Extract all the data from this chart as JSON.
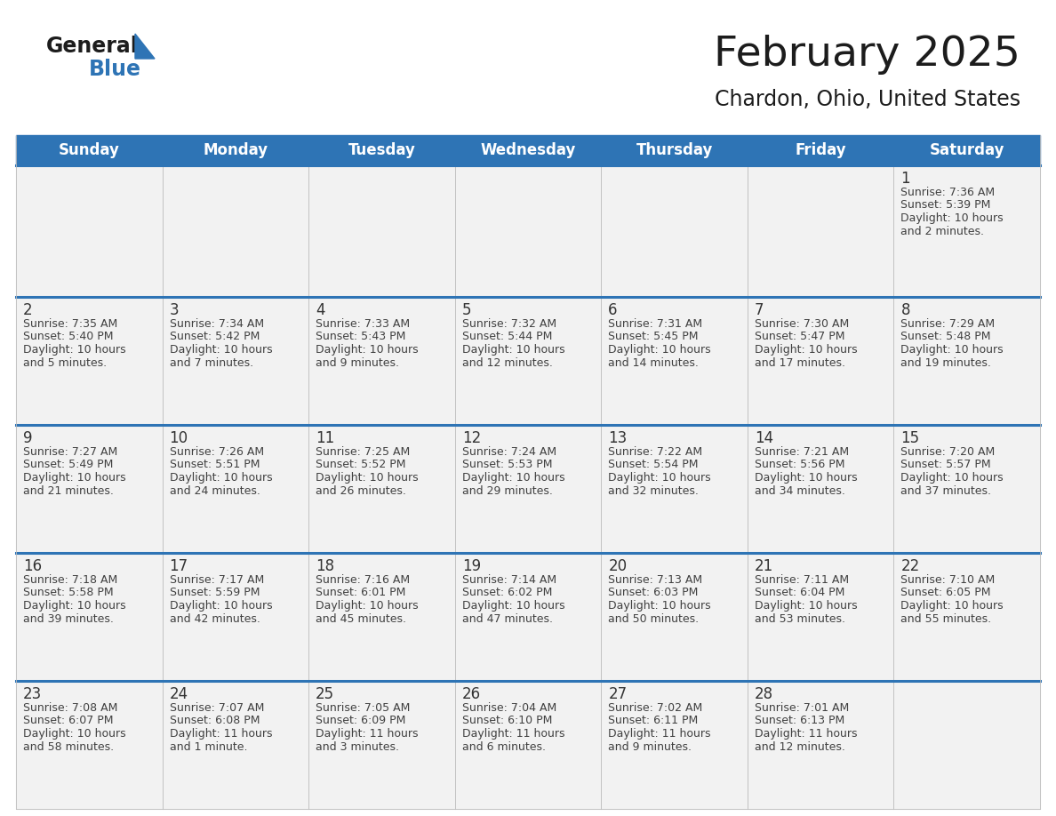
{
  "title": "February 2025",
  "subtitle": "Chardon, Ohio, United States",
  "days_of_week": [
    "Sunday",
    "Monday",
    "Tuesday",
    "Wednesday",
    "Thursday",
    "Friday",
    "Saturday"
  ],
  "header_bg": "#2E74B5",
  "header_text": "#FFFFFF",
  "cell_bg": "#F2F2F2",
  "divider_color": "#2E74B5",
  "text_color": "#404040",
  "day_num_color": "#333333",
  "border_color": "#BBBBBB",
  "calendar_data": {
    "1": {
      "sunrise": "7:36 AM",
      "sunset": "5:39 PM",
      "daylight": "10 hours and 2 minutes."
    },
    "2": {
      "sunrise": "7:35 AM",
      "sunset": "5:40 PM",
      "daylight": "10 hours and 5 minutes."
    },
    "3": {
      "sunrise": "7:34 AM",
      "sunset": "5:42 PM",
      "daylight": "10 hours and 7 minutes."
    },
    "4": {
      "sunrise": "7:33 AM",
      "sunset": "5:43 PM",
      "daylight": "10 hours and 9 minutes."
    },
    "5": {
      "sunrise": "7:32 AM",
      "sunset": "5:44 PM",
      "daylight": "10 hours and 12 minutes."
    },
    "6": {
      "sunrise": "7:31 AM",
      "sunset": "5:45 PM",
      "daylight": "10 hours and 14 minutes."
    },
    "7": {
      "sunrise": "7:30 AM",
      "sunset": "5:47 PM",
      "daylight": "10 hours and 17 minutes."
    },
    "8": {
      "sunrise": "7:29 AM",
      "sunset": "5:48 PM",
      "daylight": "10 hours and 19 minutes."
    },
    "9": {
      "sunrise": "7:27 AM",
      "sunset": "5:49 PM",
      "daylight": "10 hours and 21 minutes."
    },
    "10": {
      "sunrise": "7:26 AM",
      "sunset": "5:51 PM",
      "daylight": "10 hours and 24 minutes."
    },
    "11": {
      "sunrise": "7:25 AM",
      "sunset": "5:52 PM",
      "daylight": "10 hours and 26 minutes."
    },
    "12": {
      "sunrise": "7:24 AM",
      "sunset": "5:53 PM",
      "daylight": "10 hours and 29 minutes."
    },
    "13": {
      "sunrise": "7:22 AM",
      "sunset": "5:54 PM",
      "daylight": "10 hours and 32 minutes."
    },
    "14": {
      "sunrise": "7:21 AM",
      "sunset": "5:56 PM",
      "daylight": "10 hours and 34 minutes."
    },
    "15": {
      "sunrise": "7:20 AM",
      "sunset": "5:57 PM",
      "daylight": "10 hours and 37 minutes."
    },
    "16": {
      "sunrise": "7:18 AM",
      "sunset": "5:58 PM",
      "daylight": "10 hours and 39 minutes."
    },
    "17": {
      "sunrise": "7:17 AM",
      "sunset": "5:59 PM",
      "daylight": "10 hours and 42 minutes."
    },
    "18": {
      "sunrise": "7:16 AM",
      "sunset": "6:01 PM",
      "daylight": "10 hours and 45 minutes."
    },
    "19": {
      "sunrise": "7:14 AM",
      "sunset": "6:02 PM",
      "daylight": "10 hours and 47 minutes."
    },
    "20": {
      "sunrise": "7:13 AM",
      "sunset": "6:03 PM",
      "daylight": "10 hours and 50 minutes."
    },
    "21": {
      "sunrise": "7:11 AM",
      "sunset": "6:04 PM",
      "daylight": "10 hours and 53 minutes."
    },
    "22": {
      "sunrise": "7:10 AM",
      "sunset": "6:05 PM",
      "daylight": "10 hours and 55 minutes."
    },
    "23": {
      "sunrise": "7:08 AM",
      "sunset": "6:07 PM",
      "daylight": "10 hours and 58 minutes."
    },
    "24": {
      "sunrise": "7:07 AM",
      "sunset": "6:08 PM",
      "daylight": "11 hours and 1 minute."
    },
    "25": {
      "sunrise": "7:05 AM",
      "sunset": "6:09 PM",
      "daylight": "11 hours and 3 minutes."
    },
    "26": {
      "sunrise": "7:04 AM",
      "sunset": "6:10 PM",
      "daylight": "11 hours and 6 minutes."
    },
    "27": {
      "sunrise": "7:02 AM",
      "sunset": "6:11 PM",
      "daylight": "11 hours and 9 minutes."
    },
    "28": {
      "sunrise": "7:01 AM",
      "sunset": "6:13 PM",
      "daylight": "11 hours and 12 minutes."
    }
  },
  "week_layout": [
    [
      null,
      null,
      null,
      null,
      null,
      null,
      1
    ],
    [
      2,
      3,
      4,
      5,
      6,
      7,
      8
    ],
    [
      9,
      10,
      11,
      12,
      13,
      14,
      15
    ],
    [
      16,
      17,
      18,
      19,
      20,
      21,
      22
    ],
    [
      23,
      24,
      25,
      26,
      27,
      28,
      null
    ]
  ]
}
